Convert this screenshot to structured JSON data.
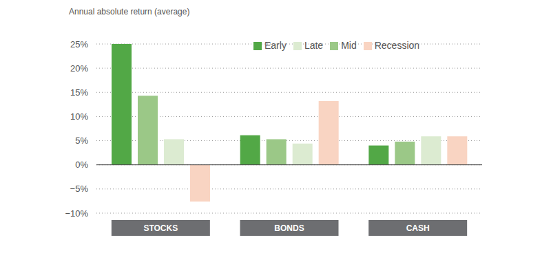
{
  "chart_data": {
    "type": "bar",
    "y_label": "Annual absolute return (average)",
    "categories": [
      "STOCKS",
      "BONDS",
      "CASH"
    ],
    "series": [
      {
        "name": "Early",
        "color": "#52a846",
        "values": [
          25,
          6.1,
          4.0
        ]
      },
      {
        "name": "Mid",
        "color": "#9bc887",
        "values": [
          14.3,
          5.3,
          4.8
        ]
      },
      {
        "name": "Late",
        "color": "#dcebd1",
        "values": [
          5.3,
          4.4,
          5.9
        ]
      },
      {
        "name": "Recession",
        "color": "#f9d4c2",
        "values": [
          -7.6,
          13.2,
          5.9
        ]
      }
    ],
    "ylim": [
      -10,
      25
    ],
    "yticks": [
      {
        "value": -10,
        "label": "−10%"
      },
      {
        "value": -5,
        "label": "−5%"
      },
      {
        "value": 0,
        "label": "0%"
      },
      {
        "value": 5,
        "label": "5%"
      },
      {
        "value": 10,
        "label": "10%"
      },
      {
        "value": 15,
        "label": "15%"
      },
      {
        "value": 20,
        "label": "20%"
      },
      {
        "value": 25,
        "label": "25%"
      }
    ],
    "grid": true,
    "legend": "top"
  }
}
